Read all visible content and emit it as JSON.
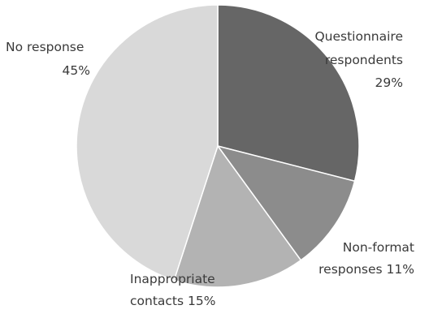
{
  "chart_data": {
    "type": "pie",
    "title": "",
    "start_angle_deg": 0,
    "direction": "clockwise",
    "legend": "none",
    "slices": [
      {
        "label_lines": [
          "Questionnaire",
          "respondents",
          "29%"
        ],
        "value": 29,
        "color": "#666666"
      },
      {
        "label_lines": [
          "Non-format",
          "responses 11%"
        ],
        "value": 11,
        "color": "#8c8c8c"
      },
      {
        "label_lines": [
          "Inappropriate",
          "contacts 15%"
        ],
        "value": 15,
        "color": "#b3b3b3"
      },
      {
        "label_lines": [
          "No response",
          "45%"
        ],
        "value": 45,
        "color": "#d9d9d9"
      }
    ]
  }
}
